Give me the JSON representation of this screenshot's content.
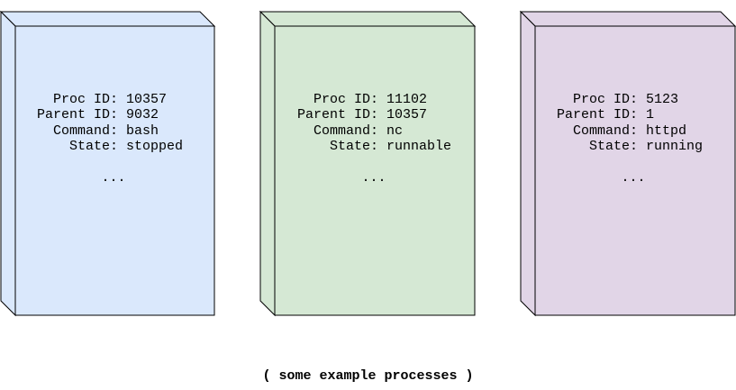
{
  "boxes": [
    {
      "fields": [
        {
          "label": "Proc ID:",
          "value": "10357"
        },
        {
          "label": "Parent ID:",
          "value": "9032"
        },
        {
          "label": "Command:",
          "value": "bash"
        },
        {
          "label": "State:",
          "value": "stopped"
        }
      ],
      "ellipsis": "...",
      "colors": {
        "fill": "#dae8fc",
        "stroke": "#000000"
      }
    },
    {
      "fields": [
        {
          "label": "Proc ID:",
          "value": "11102"
        },
        {
          "label": "Parent ID:",
          "value": "10357"
        },
        {
          "label": "Command:",
          "value": "nc"
        },
        {
          "label": "State:",
          "value": "runnable"
        }
      ],
      "ellipsis": "...",
      "colors": {
        "fill": "#d5e8d4",
        "stroke": "#000000"
      }
    },
    {
      "fields": [
        {
          "label": "Proc ID:",
          "value": "5123"
        },
        {
          "label": "Parent ID:",
          "value": "1"
        },
        {
          "label": "Command:",
          "value": "httpd"
        },
        {
          "label": "State:",
          "value": "running"
        }
      ],
      "ellipsis": "...",
      "colors": {
        "fill": "#e1d5e7",
        "stroke": "#000000"
      }
    }
  ],
  "caption": "( some example processes )"
}
